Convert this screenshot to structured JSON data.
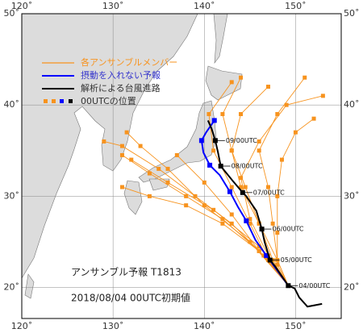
{
  "chart_data": {
    "type": "track",
    "xlim": [
      120,
      155
    ],
    "ylim": [
      16.6,
      50
    ],
    "xticks": [
      {
        "value": 120,
        "label": "120˚"
      },
      {
        "value": 130,
        "label": "130˚"
      },
      {
        "value": 140,
        "label": "140˚"
      },
      {
        "value": 150,
        "label": "150˚"
      }
    ],
    "yticks": [
      {
        "value": 20,
        "label": "20˚"
      },
      {
        "value": 30,
        "label": "30˚"
      },
      {
        "value": 40,
        "label": "40˚"
      },
      {
        "value": 50,
        "label": "50˚"
      }
    ],
    "grid": true,
    "ensemble": {
      "name": "各アンサンブルメンバー",
      "color": "#f7931e",
      "tracks": [
        {
          "x": [
            149.2,
            146,
            142,
            138,
            134,
            131
          ],
          "y": [
            20.2,
            24,
            27.5,
            30,
            32.5,
            34.5
          ]
        },
        {
          "x": [
            149.2,
            146,
            141,
            136,
            132
          ],
          "y": [
            20.2,
            24.5,
            28.5,
            31.5,
            34
          ]
        },
        {
          "x": [
            149.2,
            145,
            140,
            136,
            133,
            131.5
          ],
          "y": [
            20.2,
            25,
            29,
            33,
            35.5,
            37
          ]
        },
        {
          "x": [
            149.2,
            146,
            143,
            140,
            137
          ],
          "y": [
            20.2,
            24,
            28,
            31.5,
            34.5
          ]
        },
        {
          "x": [
            149.2,
            147,
            145,
            143,
            141,
            140.5,
            143
          ],
          "y": [
            20.2,
            23,
            27,
            31,
            35,
            39,
            42.5
          ]
        },
        {
          "x": [
            149.2,
            147.5,
            146,
            144.5,
            143,
            142,
            144
          ],
          "y": [
            20.2,
            23,
            27,
            31,
            35,
            39,
            43
          ]
        },
        {
          "x": [
            149.2,
            148,
            147.5,
            147,
            146,
            148,
            151
          ],
          "y": [
            20.2,
            23,
            27,
            31,
            35,
            39,
            43
          ]
        },
        {
          "x": [
            149.2,
            148,
            148,
            148,
            148.5,
            150,
            152
          ],
          "y": [
            20.2,
            22.5,
            26,
            30,
            34,
            37,
            38.5
          ]
        },
        {
          "x": [
            149.2,
            148,
            146,
            144,
            143,
            144,
            147
          ],
          "y": [
            20.2,
            23,
            27,
            31,
            35,
            39,
            42
          ]
        },
        {
          "x": [
            149.2,
            146.5,
            143,
            139,
            135,
            131,
            129
          ],
          "y": [
            20.2,
            23.5,
            27,
            30,
            33,
            35.5,
            36
          ]
        },
        {
          "x": [
            149.2,
            146,
            142,
            138,
            134,
            131
          ],
          "y": [
            20.2,
            24,
            27,
            29,
            30,
            31
          ]
        },
        {
          "x": [
            149.2,
            147,
            145,
            144,
            146,
            149,
            153
          ],
          "y": [
            20.2,
            23.5,
            27.5,
            32,
            36,
            40,
            41
          ]
        }
      ]
    },
    "control": {
      "name": "摂動を入れない予報",
      "color": "#0000ff",
      "x": [
        149.2,
        146.8,
        145.6,
        144.6,
        143.7,
        142.8,
        141.7,
        140.6,
        139.9,
        139.7,
        140.2,
        141.1
      ],
      "y": [
        20.2,
        23.5,
        25.2,
        27.3,
        28.8,
        30.5,
        32.3,
        33.4,
        34.8,
        36.1,
        37,
        38.3
      ]
    },
    "analysis": {
      "name": "解析による台風進路",
      "color": "#000000",
      "x": [
        152.9,
        151.3,
        150.4,
        149.9,
        149.2,
        147.7,
        147.2,
        146.6,
        146.3,
        145.7,
        144.6,
        144.2,
        143.1,
        141.8,
        141.5,
        141.2,
        140.8,
        140.4
      ],
      "y": [
        18.2,
        17.9,
        18.9,
        19.9,
        20.2,
        22.4,
        23,
        25,
        26.4,
        28.4,
        30,
        30.4,
        31.7,
        33.3,
        34.8,
        36.1,
        37.4,
        38.3
      ]
    },
    "positions": {
      "name": "00UTCの位置",
      "x": [
        149.2,
        147.2,
        146.3,
        144.2,
        141.8,
        141.2
      ],
      "y": [
        20.2,
        23,
        26.4,
        30.4,
        33.3,
        36.1
      ],
      "labels": [
        "04/00UTC",
        "05/00UTC",
        "06/00UTC",
        "07/00UTC",
        "08/00UTC",
        "09/00UTC"
      ]
    },
    "annotations": [
      "アンサンブル予報 T1813",
      "2018/08/04 00UTC初期値"
    ]
  }
}
